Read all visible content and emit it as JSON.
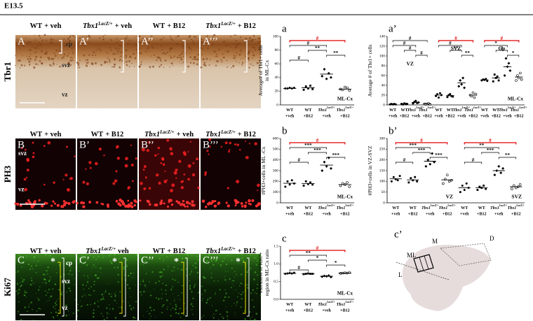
{
  "header": {
    "stage": "E13.5"
  },
  "rows": [
    {
      "label": "Tbr1",
      "panels": [
        {
          "letter": "A",
          "title": {
            "name": "WT",
            "treatment": "+ veh"
          },
          "labels": [
            "cp",
            "svz",
            "vz"
          ]
        },
        {
          "letter": "A’",
          "title": {
            "name": "Tbx1",
            "sup": "LacZ/+",
            "treatment": "+ veh"
          }
        },
        {
          "letter": "A’’",
          "title": {
            "name": "WT",
            "treatment": "+ B12"
          }
        },
        {
          "letter": "A’’’",
          "title": {
            "name": "Tbx1",
            "sup": "LacZ/+",
            "treatment": "+ B12"
          }
        }
      ]
    },
    {
      "label": "PH3",
      "panels": [
        {
          "letter": "B",
          "title": {
            "name": "WT",
            "treatment": "+ veh"
          },
          "labels": [
            "svz",
            "vz"
          ]
        },
        {
          "letter": "B’",
          "title": {
            "name": "WT",
            "treatment": "+ B12"
          }
        },
        {
          "letter": "B’’",
          "title": {
            "name": "Tbx1",
            "sup": "LacZ/+",
            "treatment": "+ veh"
          }
        },
        {
          "letter": "B’’’",
          "title": {
            "name": "Tbx1",
            "sup": "LacZ/+",
            "treatment": "+ B12"
          }
        }
      ]
    },
    {
      "label": "Ki67",
      "panels": [
        {
          "letter": "C",
          "title": {
            "name": "WT",
            "treatment": "+ veh"
          },
          "labels": [
            "*",
            "cp",
            "svz",
            "vz"
          ]
        },
        {
          "letter": "C’",
          "title": {
            "name": "Tbx1",
            "sup": "LacZ/+",
            "treatment": "veh"
          },
          "labels": [
            "*"
          ]
        },
        {
          "letter": "C’’",
          "title": {
            "name": "WT",
            "treatment": "+  B12"
          },
          "labels": [
            "*"
          ]
        },
        {
          "letter": "C’’’",
          "title": {
            "name": "Tbx1",
            "sup": "LacZ/+",
            "treatment": "+ B12"
          },
          "labels": [
            "*"
          ]
        }
      ]
    }
  ],
  "categories": [
    {
      "name": "WT",
      "treatment": "+veh"
    },
    {
      "name": "WT",
      "treatment": "+B12"
    },
    {
      "name": "Tbx1",
      "sup": "LacZ/+",
      "treatment": "+veh"
    },
    {
      "name": "Tbx1",
      "sup": "LacZ/+",
      "treatment": "+B12"
    }
  ],
  "charts": [
    {
      "letter": "a",
      "ylabel": [
        "Average# of Tbr1+ cells",
        "in ML-Cx"
      ],
      "note": "ML-Cx",
      "ylim": [
        0,
        100
      ],
      "yticks": [
        0,
        20,
        40,
        60,
        80,
        100
      ],
      "groups": [
        {
          "points": [
            [
              24,
              24,
              25,
              24,
              25
            ],
            [
              22,
              27,
              24,
              28,
              23
            ],
            [
              42,
              52,
              38,
              46,
              40
            ],
            [
              23,
              22,
              26,
              25,
              21
            ]
          ],
          "means": [
            24,
            25,
            45,
            23
          ],
          "brackets": [
            {
              "from": 0,
              "to": 3,
              "label": "#",
              "color": "#e00000"
            },
            {
              "from": 0,
              "to": 2,
              "label": "#",
              "color": "#000000"
            },
            {
              "from": 1,
              "to": 2,
              "label": "**",
              "color": "#000000"
            },
            {
              "from": 2,
              "to": 3,
              "label": "**",
              "color": "#000000"
            },
            {
              "from": 0,
              "to": 1,
              "label": "#",
              "color": "#000000"
            }
          ]
        }
      ]
    },
    {
      "letter": "a’",
      "ylabel": [
        "Average # of Tbr1+ cells"
      ],
      "note": "ML-Cx",
      "ylim": [
        0,
        140
      ],
      "yticks": [
        0,
        20,
        40,
        60,
        80,
        100,
        120,
        140
      ],
      "groups": [
        {
          "name": "VZ",
          "points": [
            [
              1,
              2,
              1,
              2,
              1
            ],
            [
              2,
              1,
              3,
              2,
              2
            ],
            [
              3,
              6,
              8,
              4,
              5
            ],
            [
              2,
              1,
              2,
              3,
              1
            ]
          ],
          "means": [
            1.5,
            2,
            5,
            2
          ],
          "brackets": [
            {
              "from": 0,
              "to": 3,
              "label": "#",
              "color": "#000000"
            },
            {
              "from": 0,
              "to": 2,
              "label": "#",
              "color": "#000000"
            },
            {
              "from": 1,
              "to": 2,
              "label": "#",
              "color": "#000000"
            },
            {
              "from": 2,
              "to": 3,
              "label": "#",
              "color": "#000000"
            }
          ]
        },
        {
          "name": "SVZ",
          "points": [
            [
              18,
              22,
              15,
              24,
              20
            ],
            [
              16,
              20,
              22,
              18,
              17
            ],
            [
              38,
              50,
              42,
              55,
              35
            ],
            [
              20,
              18,
              25,
              15,
              22
            ]
          ],
          "means": [
            20,
            19,
            45,
            20
          ],
          "brackets": [
            {
              "from": 0,
              "to": 3,
              "label": "#",
              "color": "#e00000"
            },
            {
              "from": 0,
              "to": 2,
              "label": "#",
              "color": "#000000"
            },
            {
              "from": 1,
              "to": 2,
              "label": "**",
              "color": "#000000"
            },
            {
              "from": 2,
              "to": 3,
              "label": "**",
              "color": "#000000"
            }
          ]
        },
        {
          "name": "Cp",
          "points": [
            [
              50,
              52,
              51,
              53,
              49
            ],
            [
              48,
              62,
              55,
              58,
              50
            ],
            [
              60,
              95,
              78,
              85,
              70
            ],
            [
              50,
              60,
              55,
              65,
              52
            ]
          ],
          "means": [
            51,
            55,
            78,
            57
          ],
          "brackets": [
            {
              "from": 0,
              "to": 3,
              "label": "#",
              "color": "#e00000"
            },
            {
              "from": 0,
              "to": 2,
              "label": "*",
              "color": "#000000"
            },
            {
              "from": 1,
              "to": 2,
              "label": "#",
              "color": "#000000"
            },
            {
              "from": 2,
              "to": 3,
              "label": "*",
              "color": "#000000"
            }
          ]
        }
      ]
    },
    {
      "letter": "b",
      "ylabel": [
        "#PH3+cells in ML -Cx"
      ],
      "note": "ML-Cx",
      "ylim": [
        0,
        600
      ],
      "yticks": [
        0,
        100,
        200,
        300,
        400,
        500,
        600
      ],
      "groups": [
        {
          "points": [
            [
              150,
              200,
              170,
              210,
              180
            ],
            [
              160,
              200,
              175,
              190,
              170
            ],
            [
              300,
              380,
              340,
              420,
              320
            ],
            [
              160,
              180,
              170,
              190,
              150
            ]
          ],
          "means": [
            182,
            179,
            352,
            170
          ],
          "brackets": [
            {
              "from": 0,
              "to": 3,
              "label": "#",
              "color": "#e00000"
            },
            {
              "from": 0,
              "to": 2,
              "label": "***",
              "color": "#000000"
            },
            {
              "from": 1,
              "to": 2,
              "label": "***",
              "color": "#000000"
            },
            {
              "from": 2,
              "to": 3,
              "label": "***",
              "color": "#000000"
            },
            {
              "from": 0,
              "to": 1,
              "label": "#",
              "color": "#000000"
            }
          ]
        }
      ]
    },
    {
      "letter": "b’",
      "ylabel": [
        "#PH3+cells in VZ-SVZ"
      ],
      "ylim": [
        0,
        300
      ],
      "yticks": [
        0,
        50,
        100,
        150,
        200,
        250,
        300
      ],
      "groups": [
        {
          "name": "VZ",
          "points": [
            [
              100,
              120,
              110,
              105,
              125
            ],
            [
              95,
              115,
              105,
              120,
              100
            ],
            [
              170,
              200,
              180,
              230,
              190
            ],
            [
              90,
              110,
              130,
              100,
              105
            ]
          ],
          "means": [
            112,
            107,
            194,
            107
          ],
          "brackets": [
            {
              "from": 0,
              "to": 3,
              "label": "#",
              "color": "#e00000"
            },
            {
              "from": 0,
              "to": 2,
              "label": "***",
              "color": "#000000"
            },
            {
              "from": 1,
              "to": 2,
              "label": "***",
              "color": "#000000"
            },
            {
              "from": 2,
              "to": 3,
              "label": "***",
              "color": "#000000"
            },
            {
              "from": 0,
              "to": 1,
              "label": "#",
              "color": "#000000"
            }
          ]
        },
        {
          "name": "SVZ",
          "points": [
            [
              50,
              80,
              60,
              90,
              70
            ],
            [
              60,
              75,
              70,
              80,
              65
            ],
            [
              130,
              150,
              170,
              140,
              160
            ],
            [
              65,
              80,
              70,
              75,
              85
            ]
          ],
          "means": [
            70,
            70,
            150,
            75
          ],
          "brackets": [
            {
              "from": 0,
              "to": 3,
              "label": "#",
              "color": "#e00000"
            },
            {
              "from": 0,
              "to": 2,
              "label": "**",
              "color": "#000000"
            },
            {
              "from": 1,
              "to": 2,
              "label": "***",
              "color": "#000000"
            },
            {
              "from": 2,
              "to": 3,
              "label": "**",
              "color": "#000000"
            },
            {
              "from": 0,
              "to": 1,
              "label": "#",
              "color": "#000000"
            }
          ]
        }
      ]
    },
    {
      "letter": "c",
      "ylabel": [
        "Thickness of Ki67+",
        "region in ML-Cx ratio"
      ],
      "note": "ML-Cx",
      "ylim": [
        0,
        1.5
      ],
      "yticks": [
        {
          "value": 0,
          "label": "0.0"
        },
        {
          "value": 0.5,
          "label": "0.5"
        },
        {
          "value": 1,
          "label": "1.0"
        },
        {
          "value": 1.5,
          "label": "1.5"
        }
      ],
      "groups": [
        {
          "points": [
            [
              0.72,
              0.73,
              0.74,
              0.73,
              0.75
            ],
            [
              0.71,
              0.72,
              0.73,
              0.72,
              0.72
            ],
            [
              0.64,
              0.66,
              0.65,
              0.67,
              0.63
            ],
            [
              0.73,
              0.74,
              0.75,
              0.74,
              0.76
            ]
          ],
          "means": [
            0.73,
            0.72,
            0.65,
            0.74
          ],
          "brackets": [
            {
              "from": 0,
              "to": 3,
              "label": "#",
              "color": "#e00000"
            },
            {
              "from": 0,
              "to": 2,
              "label": "**",
              "color": "#000000"
            },
            {
              "from": 1,
              "to": 2,
              "label": "*",
              "color": "#000000"
            },
            {
              "from": 2,
              "to": 3,
              "label": "*",
              "color": "#000000"
            },
            {
              "from": 0,
              "to": 1,
              "label": "#",
              "color": "#000000"
            }
          ]
        }
      ]
    }
  ],
  "diagram": {
    "letter": "c’",
    "labels": [
      "M",
      "D",
      "ML",
      "L"
    ]
  }
}
